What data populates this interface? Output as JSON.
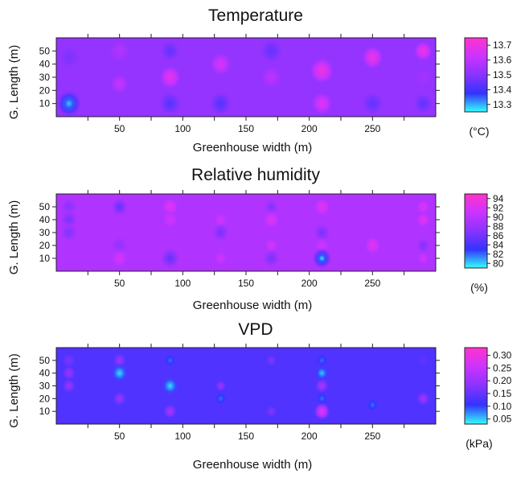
{
  "chart_data": [
    {
      "type": "heatmap",
      "title": "Temperature",
      "xlabel": "Greenhouse width (m)",
      "ylabel": "G. Length (m)",
      "xlim": [
        0,
        300
      ],
      "ylim": [
        0,
        60
      ],
      "x_ticks": [
        50,
        100,
        150,
        200,
        250
      ],
      "y_ticks": [
        10,
        20,
        30,
        40,
        50
      ],
      "unit": "(°C)",
      "colorbar": {
        "min": 13.25,
        "max": 13.75,
        "ticks": [
          13.3,
          13.4,
          13.5,
          13.6,
          13.7
        ],
        "tick_labels": [
          "13.3",
          "13.4",
          "13.5",
          "13.6",
          "13.7"
        ],
        "colors": [
          "#33ffff",
          "#3333ff",
          "#8a33ff",
          "#cc33ff",
          "#ff33cc"
        ]
      },
      "background_value": 13.52,
      "points": [
        {
          "x": 10,
          "y": 10,
          "value": 13.28,
          "spread": 9
        },
        {
          "x": 10,
          "y": 45,
          "value": 13.48,
          "spread": 8
        },
        {
          "x": 50,
          "y": 25,
          "value": 13.62,
          "spread": 7
        },
        {
          "x": 50,
          "y": 50,
          "value": 13.58,
          "spread": 8
        },
        {
          "x": 90,
          "y": 10,
          "value": 13.42,
          "spread": 8
        },
        {
          "x": 90,
          "y": 30,
          "value": 13.7,
          "spread": 8
        },
        {
          "x": 90,
          "y": 50,
          "value": 13.44,
          "spread": 7
        },
        {
          "x": 130,
          "y": 10,
          "value": 13.42,
          "spread": 8
        },
        {
          "x": 130,
          "y": 40,
          "value": 13.66,
          "spread": 8
        },
        {
          "x": 170,
          "y": 30,
          "value": 13.6,
          "spread": 8
        },
        {
          "x": 170,
          "y": 50,
          "value": 13.44,
          "spread": 8
        },
        {
          "x": 210,
          "y": 10,
          "value": 13.68,
          "spread": 8
        },
        {
          "x": 210,
          "y": 35,
          "value": 13.72,
          "spread": 9
        },
        {
          "x": 250,
          "y": 10,
          "value": 13.44,
          "spread": 8
        },
        {
          "x": 250,
          "y": 45,
          "value": 13.72,
          "spread": 8
        },
        {
          "x": 290,
          "y": 10,
          "value": 13.44,
          "spread": 7
        },
        {
          "x": 290,
          "y": 50,
          "value": 13.72,
          "spread": 7
        },
        {
          "x": 290,
          "y": 30,
          "value": 13.55,
          "spread": 7
        }
      ]
    },
    {
      "type": "heatmap",
      "title": "Relative humidity",
      "xlabel": "Greenhouse width (m)",
      "ylabel": "G. Length (m)",
      "xlim": [
        0,
        300
      ],
      "ylim": [
        0,
        60
      ],
      "x_ticks": [
        50,
        100,
        150,
        200,
        250
      ],
      "y_ticks": [
        10,
        20,
        30,
        40,
        50
      ],
      "unit": "(%)",
      "colorbar": {
        "min": 79,
        "max": 95,
        "ticks": [
          80,
          82,
          84,
          86,
          88,
          90,
          92,
          94
        ],
        "tick_labels": [
          "80",
          "82",
          "84",
          "86",
          "88",
          "90",
          "92",
          "94"
        ],
        "colors": [
          "#33ffff",
          "#3333ff",
          "#8a33ff",
          "#cc33ff",
          "#ff33cc"
        ]
      },
      "background_value": 89.3,
      "points": [
        {
          "x": 10,
          "y": 50,
          "value": 87,
          "spread": 6
        },
        {
          "x": 10,
          "y": 40,
          "value": 86,
          "spread": 6
        },
        {
          "x": 10,
          "y": 30,
          "value": 86.5,
          "spread": 6
        },
        {
          "x": 50,
          "y": 50,
          "value": 85,
          "spread": 6
        },
        {
          "x": 50,
          "y": 20,
          "value": 87.5,
          "spread": 6
        },
        {
          "x": 50,
          "y": 10,
          "value": 92,
          "spread": 6
        },
        {
          "x": 90,
          "y": 50,
          "value": 93,
          "spread": 6
        },
        {
          "x": 90,
          "y": 40,
          "value": 91.5,
          "spread": 6
        },
        {
          "x": 90,
          "y": 10,
          "value": 85,
          "spread": 7
        },
        {
          "x": 130,
          "y": 40,
          "value": 91.5,
          "spread": 5
        },
        {
          "x": 130,
          "y": 30,
          "value": 86,
          "spread": 6
        },
        {
          "x": 130,
          "y": 10,
          "value": 91.5,
          "spread": 5
        },
        {
          "x": 170,
          "y": 50,
          "value": 86.5,
          "spread": 5
        },
        {
          "x": 170,
          "y": 40,
          "value": 92.5,
          "spread": 6
        },
        {
          "x": 170,
          "y": 20,
          "value": 92,
          "spread": 5
        },
        {
          "x": 170,
          "y": 10,
          "value": 86,
          "spread": 6
        },
        {
          "x": 210,
          "y": 50,
          "value": 93,
          "spread": 6
        },
        {
          "x": 210,
          "y": 30,
          "value": 86,
          "spread": 6
        },
        {
          "x": 210,
          "y": 20,
          "value": 91.5,
          "spread": 5
        },
        {
          "x": 210,
          "y": 10,
          "value": 79.5,
          "spread": 7
        },
        {
          "x": 250,
          "y": 20,
          "value": 93,
          "spread": 6
        },
        {
          "x": 290,
          "y": 50,
          "value": 92.5,
          "spread": 5
        },
        {
          "x": 290,
          "y": 40,
          "value": 93,
          "spread": 5
        },
        {
          "x": 290,
          "y": 20,
          "value": 86.5,
          "spread": 5
        },
        {
          "x": 290,
          "y": 10,
          "value": 92,
          "spread": 4
        }
      ]
    },
    {
      "type": "heatmap",
      "title": "VPD",
      "xlabel": "Greenhouse width (m)",
      "ylabel": "G. Length (m)",
      "xlim": [
        0,
        300
      ],
      "ylim": [
        0,
        60
      ],
      "x_ticks": [
        50,
        100,
        150,
        200,
        250
      ],
      "y_ticks": [
        10,
        20,
        30,
        40,
        50
      ],
      "unit": "(kPa)",
      "colorbar": {
        "min": 0.03,
        "max": 0.33,
        "ticks": [
          0.05,
          0.1,
          0.15,
          0.2,
          0.25,
          0.3
        ],
        "tick_labels": [
          "0.05",
          "0.10",
          "0.15",
          "0.20",
          "0.25",
          "0.30"
        ],
        "colors": [
          "#33ffff",
          "#3333ff",
          "#8a33ff",
          "#cc33ff",
          "#ff33cc"
        ]
      },
      "background_value": 0.13,
      "points": [
        {
          "x": 10,
          "y": 50,
          "value": 0.17,
          "spread": 5
        },
        {
          "x": 10,
          "y": 40,
          "value": 0.2,
          "spread": 5
        },
        {
          "x": 10,
          "y": 30,
          "value": 0.2,
          "spread": 5
        },
        {
          "x": 50,
          "y": 50,
          "value": 0.2,
          "spread": 5
        },
        {
          "x": 50,
          "y": 40,
          "value": 0.04,
          "spread": 6
        },
        {
          "x": 50,
          "y": 20,
          "value": 0.2,
          "spread": 5
        },
        {
          "x": 90,
          "y": 50,
          "value": 0.08,
          "spread": 4
        },
        {
          "x": 90,
          "y": 30,
          "value": 0.04,
          "spread": 6
        },
        {
          "x": 90,
          "y": 10,
          "value": 0.22,
          "spread": 5
        },
        {
          "x": 130,
          "y": 30,
          "value": 0.2,
          "spread": 4
        },
        {
          "x": 130,
          "y": 20,
          "value": 0.08,
          "spread": 4
        },
        {
          "x": 170,
          "y": 50,
          "value": 0.18,
          "spread": 4
        },
        {
          "x": 170,
          "y": 10,
          "value": 0.18,
          "spread": 4
        },
        {
          "x": 210,
          "y": 50,
          "value": 0.08,
          "spread": 4
        },
        {
          "x": 210,
          "y": 40,
          "value": 0.05,
          "spread": 5
        },
        {
          "x": 210,
          "y": 30,
          "value": 0.22,
          "spread": 5
        },
        {
          "x": 210,
          "y": 20,
          "value": 0.08,
          "spread": 4
        },
        {
          "x": 210,
          "y": 10,
          "value": 0.3,
          "spread": 6
        },
        {
          "x": 250,
          "y": 15,
          "value": 0.08,
          "spread": 4
        },
        {
          "x": 290,
          "y": 20,
          "value": 0.21,
          "spread": 5
        },
        {
          "x": 290,
          "y": 50,
          "value": 0.15,
          "spread": 4
        }
      ]
    }
  ]
}
